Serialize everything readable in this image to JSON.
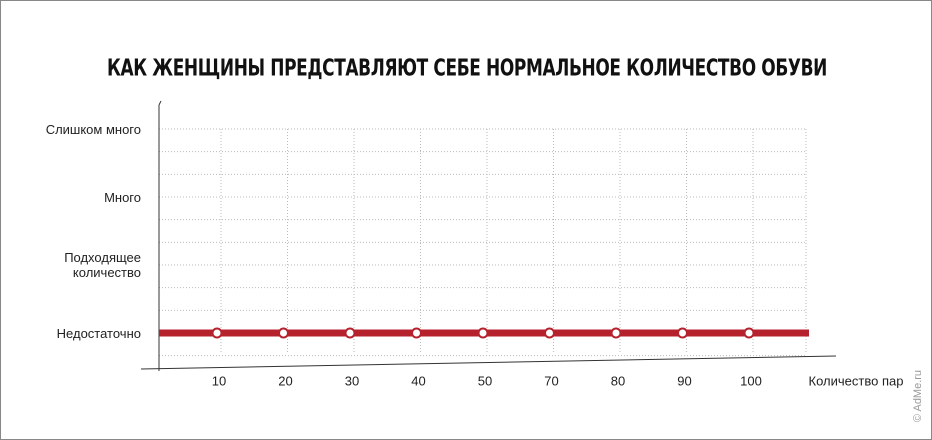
{
  "chart_data": {
    "type": "line",
    "title": "КАК ЖЕНЩИНЫ ПРЕДСТАВЛЯЮТ СЕБЕ НОРМАЛЬНОЕ КОЛИЧЕСТВО ОБУВИ",
    "x_label": "Количество пар",
    "categories": [
      "10",
      "20",
      "30",
      "40",
      "50",
      "70",
      "80",
      "90",
      "100"
    ],
    "y_categories": [
      "Недостаточно",
      "Подходящее количество",
      "Много",
      "Слишком много"
    ],
    "values": [
      "Недостаточно",
      "Недостаточно",
      "Недостаточно",
      "Недостаточно",
      "Недостаточно",
      "Недостаточно",
      "Недостаточно",
      "Недостаточно",
      "Недостаточно"
    ],
    "color": "#b5222e",
    "grid": true,
    "watermark": "© AdMe.ru"
  }
}
